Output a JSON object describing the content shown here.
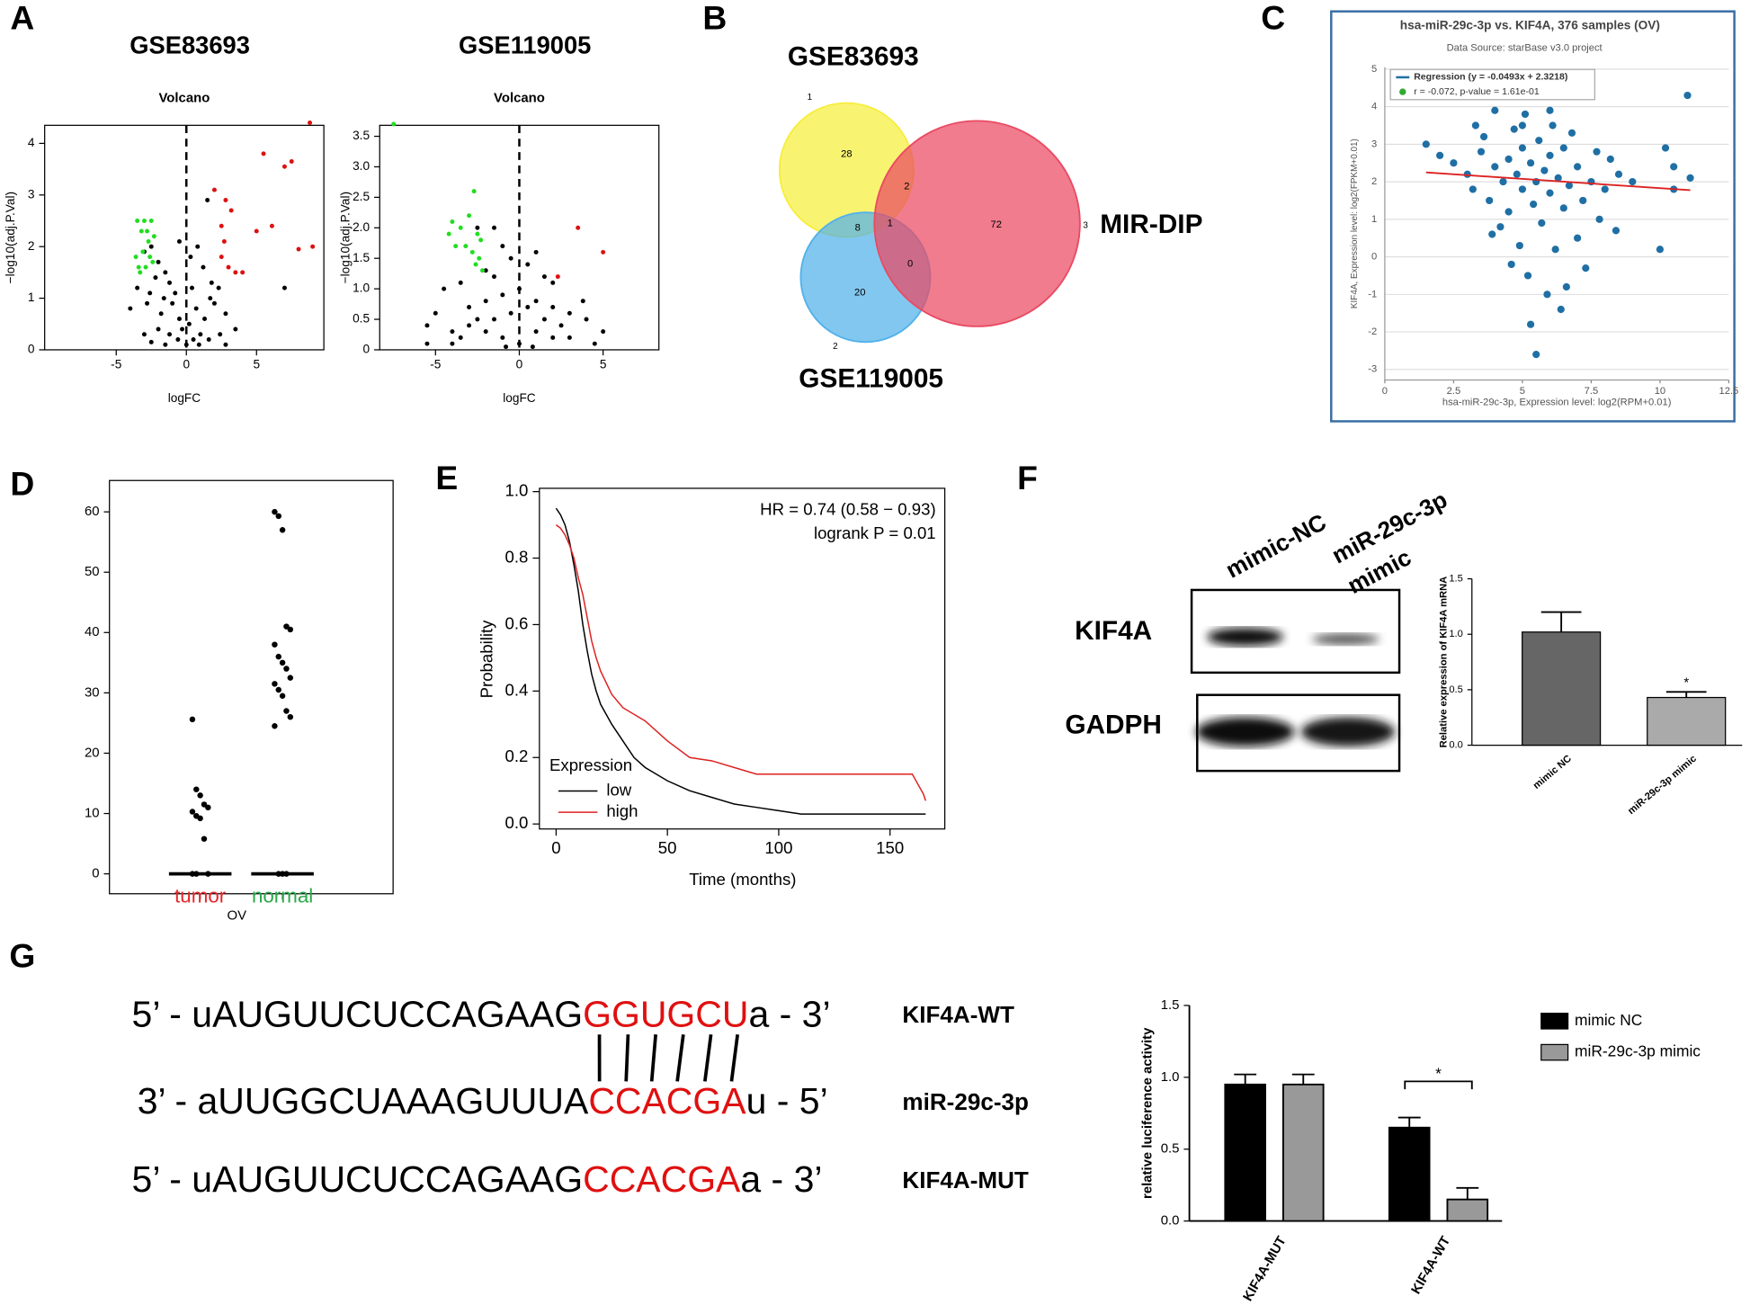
{
  "chart_data": [
    {
      "type": "scatter",
      "panel": "A",
      "title": "GSE83693",
      "subtitle": "Volcano",
      "x_label": "logFC",
      "y_label": "−log10(adj.P.Val)",
      "xlim": [
        -10.1,
        9.8
      ],
      "ylim": [
        0,
        4.35
      ],
      "xticks": [
        -5,
        0,
        5
      ],
      "yticks": [
        0,
        1,
        2,
        3,
        4
      ],
      "vline": 0,
      "series": [
        {
          "color": "#000000",
          "x": [
            -3,
            -2.5,
            -2,
            -1.5,
            -1.2,
            -2.2,
            -0.5,
            0.3,
            0.8,
            1.2,
            1.5,
            1.8,
            2.3,
            -3.5,
            -4,
            -2.8,
            -1.8,
            -1,
            -0.5,
            0.2,
            0.7,
            1.3,
            2,
            2.8,
            3.5,
            -3,
            -2,
            -1.2,
            -0.6,
            0,
            0.5,
            1,
            1.6,
            2.4,
            -1.5,
            -0.3,
            0.9,
            -2.5,
            2.8,
            7,
            -0.8,
            0.4,
            -1.6,
            1.7,
            -2.6
          ],
          "y": [
            1.9,
            2,
            1.7,
            1.5,
            1.3,
            1.4,
            2.1,
            1.8,
            2,
            1.6,
            2.9,
            1.3,
            1.2,
            1.2,
            0.8,
            0.9,
            0.7,
            0.9,
            0.6,
            0.5,
            0.8,
            0.6,
            0.9,
            0.7,
            0.4,
            0.3,
            0.4,
            0.3,
            0.2,
            0.1,
            0.2,
            0.3,
            0.2,
            0.3,
            0.1,
            0.4,
            0.1,
            0.15,
            0.1,
            1.2,
            1.1,
            1.2,
            1,
            1,
            1.1
          ]
        },
        {
          "color": "#22dd22",
          "x": [
            -3.5,
            -3,
            -2.8,
            -2.5,
            -3.2,
            -2.7,
            -2.3,
            -3.6,
            -3.1,
            -2.6,
            -3.4,
            -2.9,
            -2.4,
            -3.3
          ],
          "y": [
            2.5,
            2.5,
            2.3,
            2.5,
            2.3,
            2.1,
            2.2,
            1.8,
            1.9,
            1.8,
            1.6,
            1.6,
            1.7,
            1.5
          ]
        },
        {
          "color": "#dd1111",
          "x": [
            5.5,
            7,
            7.5,
            8.8,
            2,
            2.8,
            3.2,
            2.5,
            5,
            6.1,
            8,
            9,
            2.5,
            3,
            4,
            2.7,
            3.5
          ],
          "y": [
            3.8,
            3.55,
            3.65,
            4.4,
            3.1,
            2.9,
            2.7,
            2.4,
            2.3,
            2.4,
            1.95,
            2,
            1.8,
            1.6,
            1.5,
            2.1,
            1.5
          ]
        }
      ]
    },
    {
      "type": "scatter",
      "title": "GSE119005",
      "subtitle": "Volcano",
      "x_label": "logFC",
      "y_label": "−log10(adj.P.Val)",
      "xlim": [
        -8.33,
        8.33
      ],
      "ylim": [
        0,
        3.68
      ],
      "xticks": [
        -5,
        0,
        5
      ],
      "yticks": [
        0,
        0.5,
        {
          "value": 1,
          "label": "1.0"
        },
        1.5,
        {
          "value": 2,
          "label": "2.0"
        },
        2.5,
        {
          "value": 3,
          "label": "3.0"
        },
        3.5
      ],
      "vline": 0,
      "series": [
        {
          "color": "#000000",
          "x": [
            -2.5,
            -1.5,
            -1,
            -0.5,
            0.5,
            1,
            2,
            -2,
            -4.5,
            -3.5,
            -5,
            -5.5,
            -3,
            -2,
            -1,
            0,
            1,
            2,
            3,
            4,
            5,
            -4,
            -3,
            -2,
            -1,
            0,
            1,
            2,
            3,
            -1.5,
            1.5,
            -0.5,
            0.5,
            -2.5,
            2.5,
            -5.5,
            4.5,
            -4,
            1.5,
            -1.5,
            0.8,
            -0.8,
            3.8,
            -3.5
          ],
          "y": [
            2,
            2,
            1.7,
            1.5,
            1.4,
            1.6,
            1.1,
            1.3,
            1,
            1.1,
            0.6,
            0.4,
            0.7,
            0.8,
            0.9,
            1,
            0.8,
            0.7,
            0.6,
            0.5,
            0.3,
            0.3,
            0.4,
            0.3,
            0.2,
            0.1,
            0.3,
            0.2,
            0.2,
            0.5,
            0.5,
            0.6,
            0.7,
            0.5,
            0.4,
            0.1,
            0.1,
            0.1,
            1.2,
            1.2,
            0.05,
            0.05,
            0.8,
            0.2
          ]
        },
        {
          "color": "#22dd22",
          "x": [
            -4,
            -3.5,
            -3,
            -2.7,
            -2.5,
            -2.3,
            -4.2,
            -2.8,
            -2.4,
            -3.2,
            -2.2,
            -2.6,
            -3.8,
            -7.5
          ],
          "y": [
            2.1,
            2,
            2.2,
            2.6,
            1.9,
            1.8,
            1.9,
            1.6,
            1.5,
            1.7,
            1.3,
            1.4,
            1.7,
            3.7
          ]
        },
        {
          "color": "#dd1111",
          "x": [
            3.5,
            5,
            2.3
          ],
          "y": [
            2,
            1.6,
            1.2
          ]
        }
      ]
    },
    {
      "type": "venn",
      "panel": "B",
      "sets": [
        {
          "name": "GSE83693",
          "id": "1",
          "color": "#f6ee3c"
        },
        {
          "name": "GSE119005",
          "id": "2",
          "color": "#52b2ea"
        },
        {
          "name": "MIR-DIP",
          "id": "3",
          "color": "#ea4a62"
        }
      ],
      "values": [
        28,
        20,
        72,
        8,
        2,
        0,
        1
      ]
    },
    {
      "type": "scatter",
      "panel": "C",
      "title": "hsa-miR-29c-3p vs. KIF4A, 376 samples (OV)",
      "subtitle": "Data Source: starBase v3.0 project",
      "x_label": "hsa-miR-29c-3p, Expression level: log2(RPM+0.01)",
      "y_label": "KIF4A, Expression level: log2(FPKM+0.01)",
      "xlim": [
        0,
        12.5
      ],
      "ylim": [
        -3.28,
        5.05
      ],
      "xticks": [
        0,
        2.5,
        5,
        7.5,
        10,
        12.5
      ],
      "yticks": [
        -3,
        -2,
        -1,
        0,
        1,
        2,
        3,
        4,
        5
      ],
      "grid": true,
      "legend": [
        "Regression (y = -0.0493x + 2.3218)",
        "r = -0.072, p-value = 1.61e-01"
      ],
      "regression": {
        "slope": -0.0493,
        "intercept": 2.3218,
        "color": "#dd2222"
      },
      "series": [
        {
          "color": "#1f6fa5",
          "x": [
            1.5,
            2.5,
            3,
            3.2,
            3.5,
            3.6,
            3.8,
            4,
            4,
            4.2,
            4.3,
            4.5,
            4.5,
            4.7,
            4.8,
            4.9,
            5,
            5,
            5.1,
            5.2,
            5.3,
            5.4,
            5.5,
            5.5,
            5.6,
            5.7,
            5.8,
            5.9,
            6,
            6,
            6.1,
            6.2,
            6.3,
            6.4,
            6.5,
            6.5,
            6.7,
            6.8,
            7,
            7,
            7.2,
            7.3,
            7.5,
            7.7,
            7.8,
            8,
            8.2,
            8.4,
            8.5,
            9,
            10,
            10.2,
            10.5,
            10.5,
            11,
            11.1,
            5.3,
            6.6,
            4.6,
            3.9,
            2,
            3.3,
            5,
            6
          ],
          "y": [
            3,
            2.5,
            2.2,
            1.8,
            2.8,
            3.2,
            1.5,
            2.4,
            3.9,
            0.8,
            2,
            2.6,
            1.2,
            3.4,
            2.2,
            0.3,
            1.8,
            2.9,
            3.8,
            -0.5,
            2.5,
            1.4,
            -2.6,
            2,
            3.1,
            0.9,
            2.3,
            -1,
            1.7,
            2.7,
            3.5,
            0.2,
            2.1,
            -1.4,
            1.3,
            2.9,
            1.9,
            3.3,
            2.4,
            0.5,
            1.5,
            -0.3,
            2,
            2.8,
            1,
            1.8,
            2.6,
            0.7,
            2.2,
            2,
            0.2,
            2.9,
            2.4,
            1.8,
            4.3,
            2.1,
            -1.8,
            -0.8,
            -0.2,
            0.6,
            2.7,
            3.5,
            3.5,
            3.9
          ]
        }
      ]
    },
    {
      "type": "strip",
      "panel": "D",
      "x_label": "OV",
      "categories": [
        "tumor",
        "normal"
      ],
      "category_colors": [
        "#e8262a",
        "#2aa84a"
      ],
      "ylim": [
        -3.3,
        65.2
      ],
      "yticks": [
        0,
        10,
        20,
        30,
        40,
        50,
        60
      ],
      "values": [
        [
          25.6,
          14,
          13,
          11.5,
          11,
          10.3,
          9.6,
          9.2,
          5.8,
          0,
          0,
          0
        ],
        [
          60,
          59.3,
          57,
          41,
          40.5,
          38,
          36,
          35,
          34,
          32.5,
          31.5,
          30.5,
          29.5,
          27,
          26,
          24.5,
          0,
          0,
          0
        ]
      ],
      "medians": [
        0,
        0
      ]
    },
    {
      "type": "line",
      "panel": "E",
      "x_label": "Time (months)",
      "y_label": "Probability",
      "xlim": [
        -7.5,
        174.6
      ],
      "ylim": [
        -0.015,
        1.01
      ],
      "xticks": [
        0,
        50,
        100,
        150
      ],
      "yticks": [
        {
          "value": 0,
          "label": "0.0"
        },
        0.2,
        0.4,
        0.6,
        0.8,
        {
          "value": 1,
          "label": "1.0"
        }
      ],
      "annotations": [
        "HR = 0.74 (0.58 − 0.93)",
        "logrank P = 0.01"
      ],
      "legend_title": "Expression",
      "series": [
        {
          "name": "low",
          "color": "#000000",
          "x": [
            0,
            2,
            4,
            6,
            8,
            10,
            12,
            14,
            16,
            18,
            20,
            25,
            30,
            35,
            40,
            45,
            50,
            60,
            70,
            80,
            90,
            100,
            110,
            120,
            130,
            140,
            150,
            160,
            166
          ],
          "y": [
            0.95,
            0.93,
            0.9,
            0.85,
            0.78,
            0.7,
            0.6,
            0.52,
            0.45,
            0.4,
            0.36,
            0.3,
            0.25,
            0.2,
            0.17,
            0.15,
            0.13,
            0.1,
            0.08,
            0.06,
            0.05,
            0.04,
            0.03,
            0.03,
            0.03,
            0.03,
            0.03,
            0.03,
            0.03
          ]
        },
        {
          "name": "high",
          "color": "#dd2222",
          "x": [
            0,
            2,
            4,
            6,
            8,
            10,
            12,
            14,
            16,
            18,
            20,
            25,
            30,
            35,
            40,
            45,
            50,
            60,
            70,
            80,
            90,
            100,
            110,
            120,
            140,
            160,
            165,
            166
          ],
          "y": [
            0.9,
            0.89,
            0.87,
            0.84,
            0.8,
            0.74,
            0.69,
            0.62,
            0.55,
            0.5,
            0.46,
            0.39,
            0.35,
            0.33,
            0.31,
            0.28,
            0.25,
            0.2,
            0.19,
            0.17,
            0.15,
            0.15,
            0.15,
            0.15,
            0.15,
            0.15,
            0.09,
            0.07
          ]
        }
      ]
    },
    {
      "type": "blot",
      "panel": "F",
      "column_lines": [
        [
          "mimic-NC"
        ],
        [
          "miR-29c-3p",
          "mimic"
        ]
      ],
      "rows": [
        "KIF4A",
        "GADPH"
      ]
    },
    {
      "type": "bar",
      "y_label": "Relative expression of KIF4A mRNA",
      "categories": [
        "mimic NC",
        "miR-29c-3p mimic"
      ],
      "values": [
        1.02,
        0.43
      ],
      "errors": [
        0.18,
        0.05
      ],
      "colors": [
        "#666666",
        "#aaaaaa"
      ],
      "ylim": [
        0,
        1.5
      ],
      "yticks": [
        {
          "value": 0,
          "label": "0.0"
        },
        0.5,
        {
          "value": 1,
          "label": "1.0"
        },
        1.5
      ],
      "significance": "*"
    },
    {
      "type": "sequence",
      "panel": "G",
      "lines": [
        {
          "prefix": "5’ - uAUGUUCUCCAGAAG",
          "site": "GGUGCU",
          "suffix": "a - 3’",
          "label": "KIF4A-WT"
        },
        {
          "prefix": "3’ - aUUGGCUAAAGUUUA",
          "site": "CCACGA",
          "suffix": "u - 5’",
          "label": "miR-29c-3p"
        },
        {
          "prefix": "5’ - uAUGUUCUCCAGAAG",
          "site": "CCACGA",
          "suffix": "a - 3’",
          "label": "KIF4A-MUT"
        }
      ]
    },
    {
      "type": "grouped_bar",
      "y_label": "relative luciference activity",
      "categories": [
        "KIF4A-MUT",
        "KIF4A-WT"
      ],
      "ylim": [
        0,
        1.5
      ],
      "yticks": [
        {
          "value": 0,
          "label": "0.0"
        },
        0.5,
        {
          "value": 1,
          "label": "1.0"
        },
        1.5
      ],
      "significance": "*",
      "series": [
        {
          "name": "mimic NC",
          "color": "#000000",
          "values": [
            0.95,
            0.65
          ],
          "errors": [
            0.07,
            0.07
          ]
        },
        {
          "name": "miR-29c-3p mimic",
          "color": "#999999",
          "values": [
            0.95,
            0.15
          ],
          "errors": [
            0.07,
            0.08
          ]
        }
      ]
    }
  ]
}
